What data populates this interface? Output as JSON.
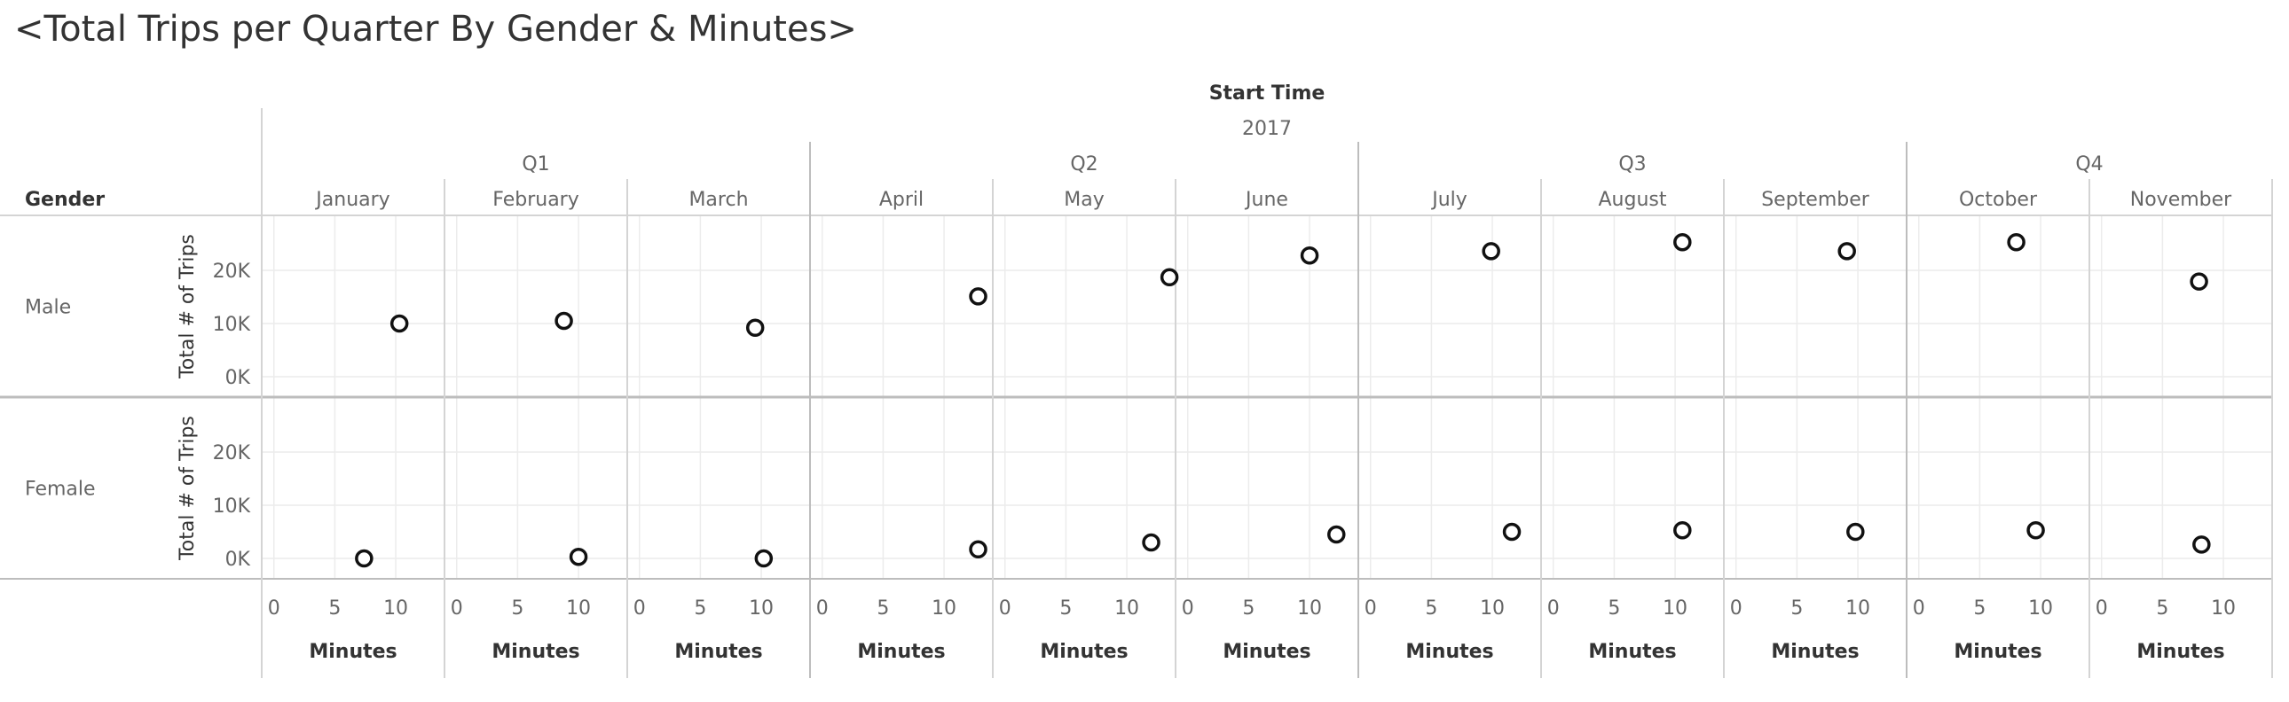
{
  "chart_data": {
    "type": "scatter",
    "title": "<Total Trips per Quarter By Gender & Minutes>",
    "column_header": "Start Time",
    "year": "2017",
    "row_header": "Gender",
    "quarters": [
      {
        "label": "Q1",
        "months": [
          "January",
          "February",
          "March"
        ]
      },
      {
        "label": "Q2",
        "months": [
          "April",
          "May",
          "June"
        ]
      },
      {
        "label": "Q3",
        "months": [
          "July",
          "August",
          "September"
        ]
      },
      {
        "label": "Q4",
        "months": [
          "October",
          "November"
        ]
      }
    ],
    "months": [
      "January",
      "February",
      "March",
      "April",
      "May",
      "June",
      "July",
      "August",
      "September",
      "October",
      "November"
    ],
    "xlabel": "Minutes",
    "x_ticks": [
      "0",
      "5",
      "10"
    ],
    "xlim": [
      -1,
      14
    ],
    "ylabel": "Total # of Trips",
    "y_ticks": [
      "0K",
      "10K",
      "20K"
    ],
    "y_tick_values": [
      0,
      10000,
      20000
    ],
    "ylim": [
      -3000,
      27000
    ],
    "grid": true,
    "series": [
      {
        "name": "Male",
        "points": [
          {
            "month": "January",
            "x": 10.3,
            "y": 10000
          },
          {
            "month": "February",
            "x": 8.8,
            "y": 10500
          },
          {
            "month": "March",
            "x": 9.5,
            "y": 9200
          },
          {
            "month": "April",
            "x": 12.8,
            "y": 15100
          },
          {
            "month": "May",
            "x": 13.5,
            "y": 18700
          },
          {
            "month": "June",
            "x": 10.0,
            "y": 22800
          },
          {
            "month": "July",
            "x": 9.9,
            "y": 23600
          },
          {
            "month": "August",
            "x": 10.6,
            "y": 25300
          },
          {
            "month": "September",
            "x": 9.1,
            "y": 23600
          },
          {
            "month": "October",
            "x": 8.0,
            "y": 25300
          },
          {
            "month": "November",
            "x": 8.0,
            "y": 17900
          }
        ]
      },
      {
        "name": "Female",
        "points": [
          {
            "month": "January",
            "x": 7.4,
            "y": 0
          },
          {
            "month": "February",
            "x": 10.0,
            "y": 300
          },
          {
            "month": "March",
            "x": 10.2,
            "y": 0
          },
          {
            "month": "April",
            "x": 12.8,
            "y": 1700
          },
          {
            "month": "May",
            "x": 12.0,
            "y": 3000
          },
          {
            "month": "June",
            "x": 12.2,
            "y": 4500
          },
          {
            "month": "July",
            "x": 11.6,
            "y": 5000
          },
          {
            "month": "August",
            "x": 10.6,
            "y": 5300
          },
          {
            "month": "September",
            "x": 9.8,
            "y": 5000
          },
          {
            "month": "October",
            "x": 9.6,
            "y": 5300
          },
          {
            "month": "November",
            "x": 8.2,
            "y": 2600
          }
        ]
      }
    ]
  }
}
